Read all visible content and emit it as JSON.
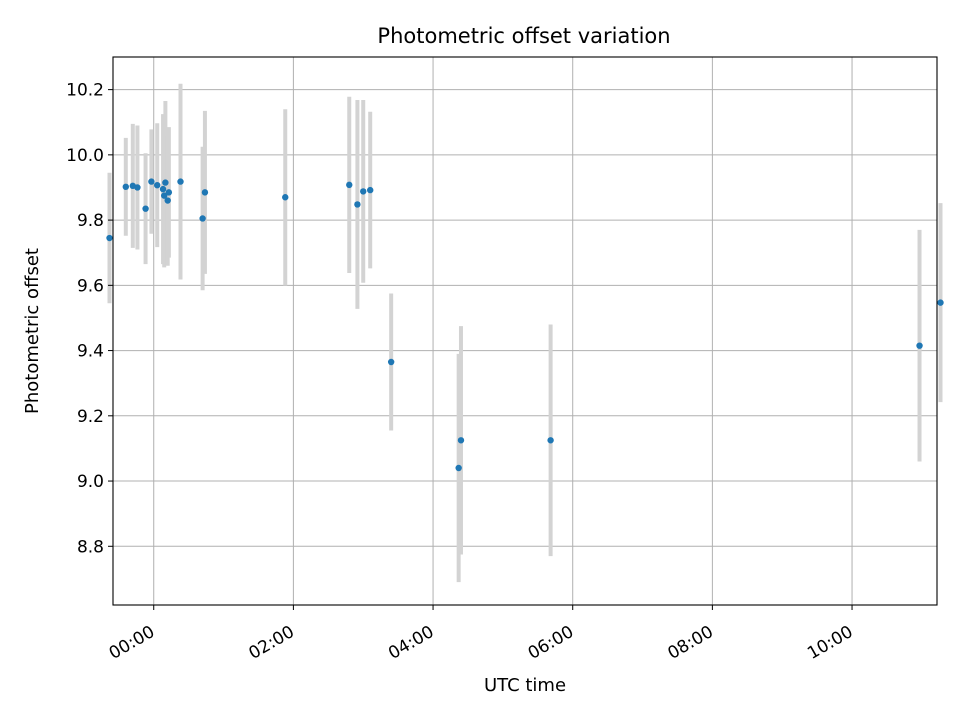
{
  "chart_data": {
    "type": "scatter",
    "title": "Photometric offset variation",
    "xlabel": "UTC time",
    "ylabel": "Photometric offset",
    "x_is_time": true,
    "xlim": [
      "23:25",
      "11:13"
    ],
    "ylim": [
      8.62,
      10.3
    ],
    "x_ticks": [
      "00:00",
      "02:00",
      "04:00",
      "06:00",
      "08:00",
      "10:00"
    ],
    "y_ticks": [
      8.8,
      9.0,
      9.2,
      9.4,
      9.6,
      9.8,
      10.0,
      10.2
    ],
    "grid": true,
    "colors": {
      "point": "#1f77b4",
      "errorbar": "#d3d3d3",
      "grid": "#b0b0b0"
    },
    "series": [
      {
        "points": [
          {
            "x": "23:22",
            "y": 9.745,
            "err": 0.2
          },
          {
            "x": "23:36",
            "y": 9.902,
            "err": 0.15
          },
          {
            "x": "23:42",
            "y": 9.905,
            "err": 0.19
          },
          {
            "x": "23:46",
            "y": 9.9,
            "err": 0.19
          },
          {
            "x": "23:53",
            "y": 9.835,
            "err": 0.17
          },
          {
            "x": "23:58",
            "y": 9.918,
            "err": 0.16
          },
          {
            "x": "00:03",
            "y": 9.907,
            "err": 0.19
          },
          {
            "x": "00:08",
            "y": 9.895,
            "err": 0.23
          },
          {
            "x": "00:09",
            "y": 9.875,
            "err": 0.22
          },
          {
            "x": "00:10",
            "y": 9.915,
            "err": 0.25
          },
          {
            "x": "00:12",
            "y": 9.86,
            "err": 0.2
          },
          {
            "x": "00:13",
            "y": 9.885,
            "err": 0.2
          },
          {
            "x": "00:23",
            "y": 9.918,
            "err": 0.3
          },
          {
            "x": "00:42",
            "y": 9.805,
            "err": 0.22
          },
          {
            "x": "00:44",
            "y": 9.885,
            "err": 0.25
          },
          {
            "x": "01:53",
            "y": 9.87,
            "err": 0.27
          },
          {
            "x": "02:48",
            "y": 9.908,
            "err": 0.27
          },
          {
            "x": "02:55",
            "y": 9.848,
            "err": 0.32
          },
          {
            "x": "03:00",
            "y": 9.888,
            "err": 0.28
          },
          {
            "x": "03:06",
            "y": 9.892,
            "err": 0.24
          },
          {
            "x": "03:24",
            "y": 9.365,
            "err": 0.21
          },
          {
            "x": "04:22",
            "y": 9.04,
            "err": 0.35
          },
          {
            "x": "04:24",
            "y": 9.125,
            "err": 0.35
          },
          {
            "x": "05:41",
            "y": 9.125,
            "err": 0.355
          },
          {
            "x": "10:58",
            "y": 9.415,
            "err": 0.355
          },
          {
            "x": "11:16",
            "y": 9.547,
            "err": 0.305
          }
        ]
      }
    ]
  }
}
